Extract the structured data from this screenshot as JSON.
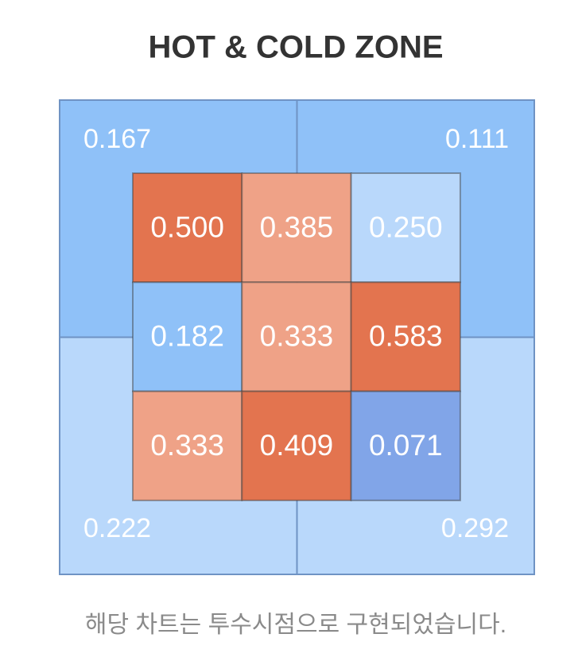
{
  "chart_data": {
    "type": "zone",
    "title": "HOT & COLD ZONE",
    "outer": {
      "values": [
        0.167,
        0.111,
        0.222,
        0.292
      ],
      "value_labels": [
        "0.167",
        "0.111",
        "0.222",
        "0.292"
      ],
      "colors": [
        "#8fc1f8",
        "#8fc1f8",
        "#b9d8fb",
        "#b9d8fb"
      ]
    },
    "inner": {
      "values": [
        [
          0.5,
          0.385,
          0.25
        ],
        [
          0.182,
          0.333,
          0.583
        ],
        [
          0.333,
          0.409,
          0.071
        ]
      ],
      "value_labels": [
        [
          "0.500",
          "0.385",
          "0.250"
        ],
        [
          "0.182",
          "0.333",
          "0.583"
        ],
        [
          "0.333",
          "0.409",
          "0.071"
        ]
      ],
      "colors": [
        [
          "#e3744f",
          "#efa287",
          "#b9d8fb"
        ],
        [
          "#8fc1f8",
          "#efa287",
          "#e3744f"
        ],
        [
          "#efa287",
          "#e3744f",
          "#81a5e8"
        ]
      ]
    }
  },
  "footnote": "해당 차트는 투수시점으로 구현되었습니다."
}
